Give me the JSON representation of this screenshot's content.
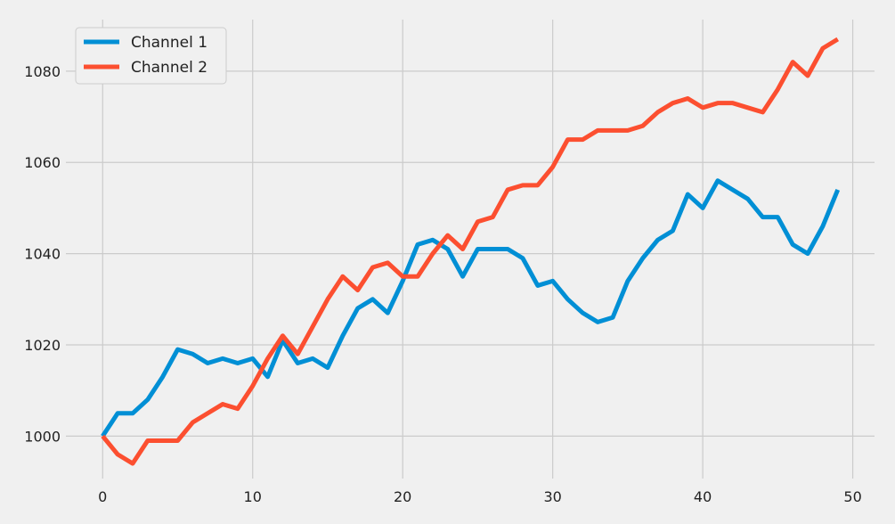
{
  "chart_data": {
    "type": "line",
    "title": "",
    "xlabel": "",
    "ylabel": "",
    "xlim": [
      -2.45,
      51.45
    ],
    "ylim": [
      990.7,
      1091.3
    ],
    "xticks": [
      0,
      10,
      20,
      30,
      40,
      50
    ],
    "yticks": [
      1000,
      1020,
      1040,
      1060,
      1080
    ],
    "grid": true,
    "legend_position": "top-left",
    "x": [
      0,
      1,
      2,
      3,
      4,
      5,
      6,
      7,
      8,
      9,
      10,
      11,
      12,
      13,
      14,
      15,
      16,
      17,
      18,
      19,
      20,
      21,
      22,
      23,
      24,
      25,
      26,
      27,
      28,
      29,
      30,
      31,
      32,
      33,
      34,
      35,
      36,
      37,
      38,
      39,
      40,
      41,
      42,
      43,
      44,
      45,
      46,
      47,
      48,
      49
    ],
    "series": [
      {
        "name": "Channel 1",
        "color": "#008fd5",
        "values": [
          1000,
          1005,
          1005,
          1008,
          1013,
          1019,
          1018,
          1016,
          1017,
          1016,
          1017,
          1013,
          1021,
          1016,
          1017,
          1015,
          1022,
          1028,
          1030,
          1027,
          1034,
          1042,
          1043,
          1041,
          1035,
          1041,
          1041,
          1041,
          1039,
          1033,
          1034,
          1030,
          1027,
          1025,
          1026,
          1034,
          1039,
          1043,
          1045,
          1053,
          1050,
          1056,
          1054,
          1052,
          1048,
          1048,
          1042,
          1040,
          1046,
          1054
        ]
      },
      {
        "name": "Channel 2",
        "color": "#fc4f30",
        "values": [
          1000,
          996,
          994,
          999,
          999,
          999,
          1003,
          1005,
          1007,
          1006,
          1011,
          1017,
          1022,
          1018,
          1024,
          1030,
          1035,
          1032,
          1037,
          1038,
          1035,
          1035,
          1040,
          1044,
          1041,
          1047,
          1048,
          1054,
          1055,
          1055,
          1059,
          1065,
          1065,
          1067,
          1067,
          1067,
          1068,
          1071,
          1073,
          1074,
          1072,
          1073,
          1073,
          1072,
          1071,
          1076,
          1082,
          1079,
          1085,
          1087
        ]
      }
    ]
  }
}
